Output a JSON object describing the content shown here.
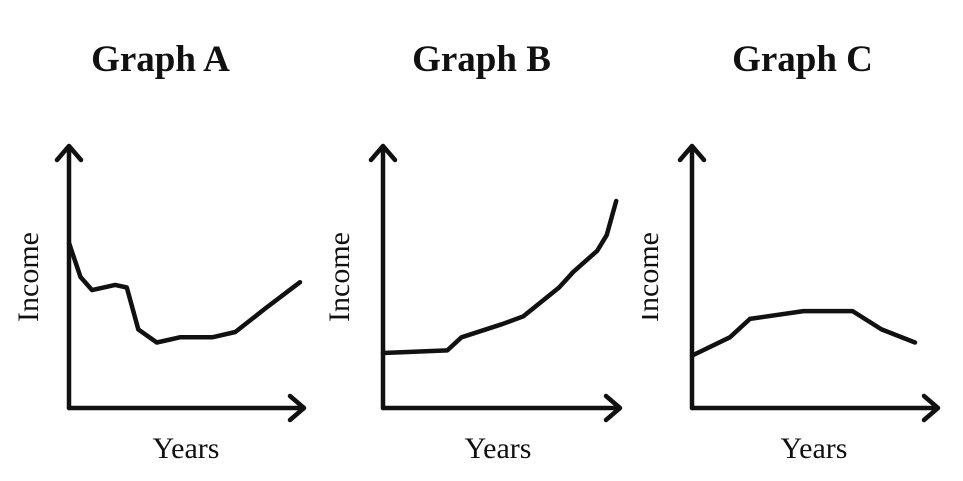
{
  "chart_data": [
    {
      "type": "line",
      "title": "Graph A",
      "xlabel": "Years",
      "ylabel": "Income",
      "grid": false,
      "axis_ticks": false,
      "x": [
        0,
        0.05,
        0.1,
        0.2,
        0.25,
        0.3,
        0.38,
        0.48,
        0.62,
        0.72,
        0.85,
        1.0
      ],
      "y": [
        0.63,
        0.5,
        0.45,
        0.47,
        0.46,
        0.3,
        0.25,
        0.27,
        0.27,
        0.29,
        0.38,
        0.48
      ]
    },
    {
      "type": "line",
      "title": "Graph B",
      "xlabel": "Years",
      "ylabel": "Income",
      "grid": false,
      "axis_ticks": false,
      "x": [
        0,
        0.27,
        0.33,
        0.5,
        0.59,
        0.74,
        0.8,
        0.9,
        0.94,
        0.98
      ],
      "y": [
        0.21,
        0.22,
        0.27,
        0.32,
        0.35,
        0.46,
        0.52,
        0.6,
        0.66,
        0.79
      ]
    },
    {
      "type": "line",
      "title": "Graph C",
      "xlabel": "Years",
      "ylabel": "Income",
      "grid": false,
      "axis_ticks": false,
      "x": [
        0,
        0.17,
        0.26,
        0.5,
        0.72,
        0.85,
        1.0
      ],
      "y": [
        0.2,
        0.27,
        0.34,
        0.37,
        0.37,
        0.3,
        0.25
      ]
    }
  ]
}
